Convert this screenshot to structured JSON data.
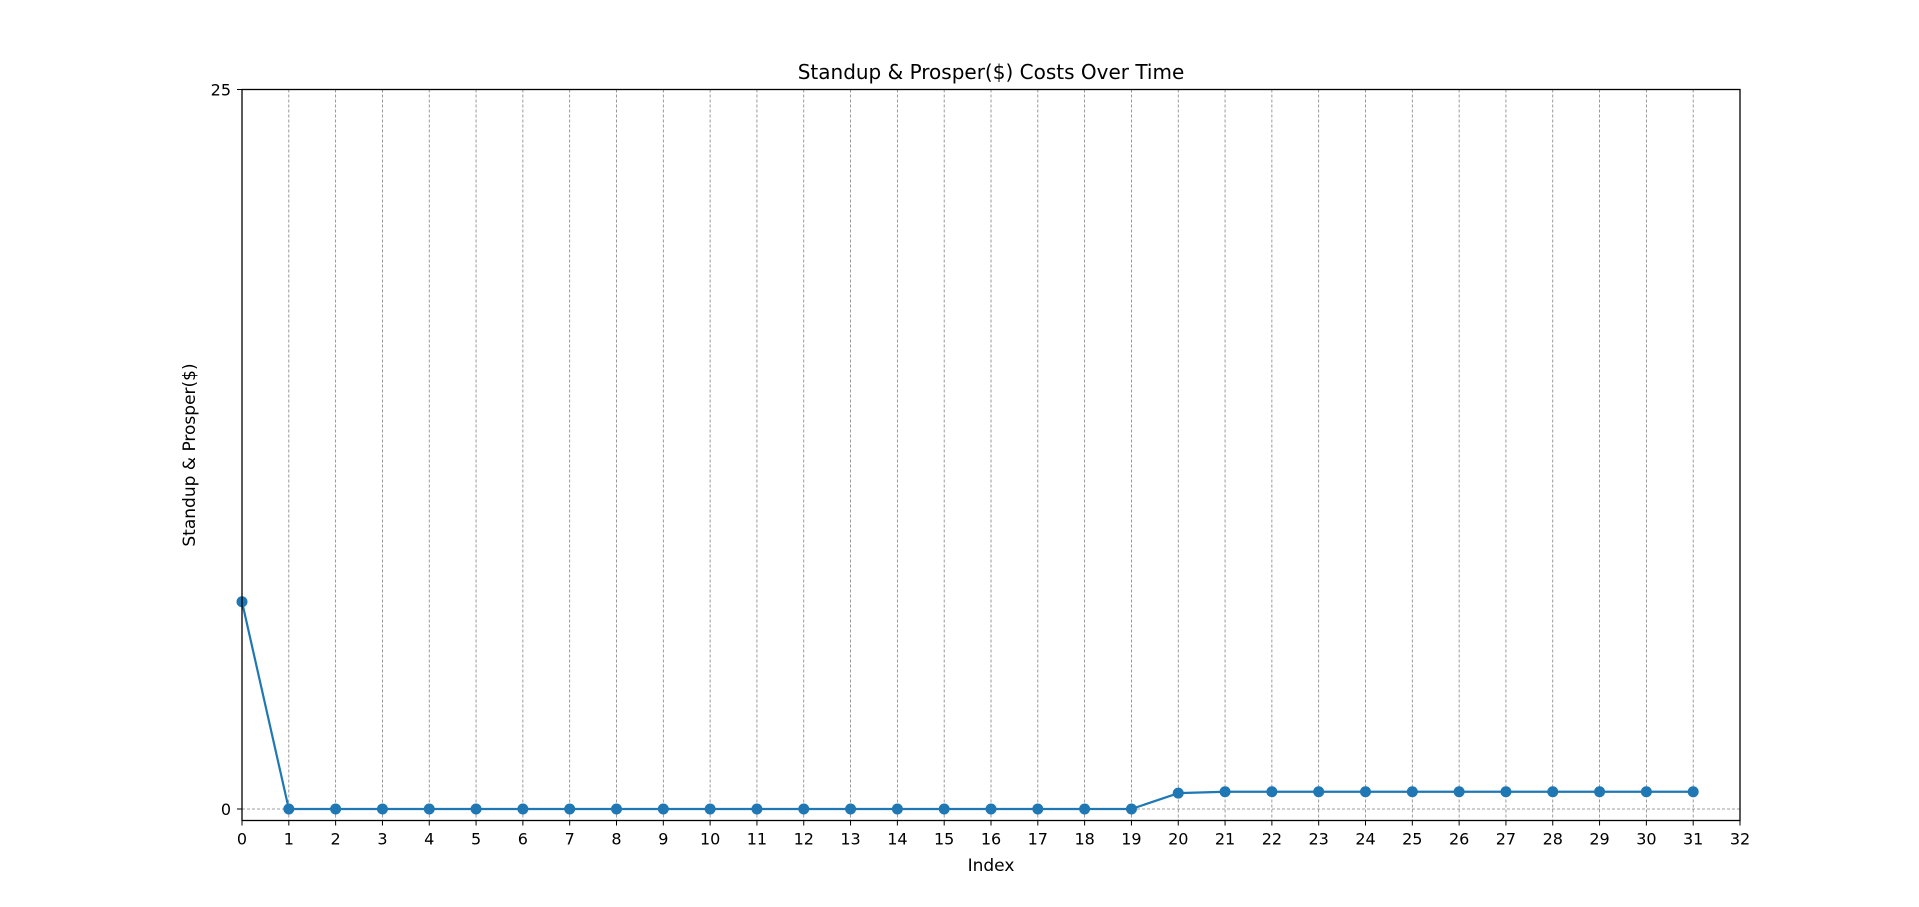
{
  "chart_data": {
    "type": "line",
    "title": "Standup & Prosper($) Costs Over Time",
    "xlabel": "Index",
    "ylabel": "Standup & Prosper($)",
    "xlim": [
      0,
      32
    ],
    "ylim": [
      -0.4,
      25
    ],
    "xticks": [
      "0",
      "1",
      "2",
      "3",
      "4",
      "5",
      "6",
      "7",
      "8",
      "9",
      "10",
      "11",
      "12",
      "13",
      "14",
      "15",
      "16",
      "17",
      "18",
      "19",
      "20",
      "21",
      "22",
      "23",
      "24",
      "25",
      "26",
      "27",
      "28",
      "29",
      "30",
      "31",
      "32"
    ],
    "yticks": [
      "0",
      "25"
    ],
    "grid": {
      "vertical": true,
      "horizontal_at_zero": true,
      "style": "dashed"
    },
    "legend": "none",
    "series": [
      {
        "color": "#1f77b4",
        "marker": "circle",
        "x": [
          0,
          1,
          2,
          3,
          4,
          5,
          6,
          7,
          8,
          9,
          10,
          11,
          12,
          13,
          14,
          15,
          16,
          17,
          18,
          19,
          20,
          21,
          22,
          23,
          24,
          25,
          26,
          27,
          28,
          29,
          30,
          31
        ],
        "values": [
          7.2,
          0,
          0,
          0,
          0,
          0,
          0,
          0,
          0,
          0,
          0,
          0,
          0,
          0,
          0,
          0,
          0,
          0,
          0,
          0,
          0.55,
          0.6,
          0.6,
          0.6,
          0.6,
          0.6,
          0.6,
          0.6,
          0.6,
          0.6,
          0.6,
          0.6
        ]
      }
    ]
  }
}
